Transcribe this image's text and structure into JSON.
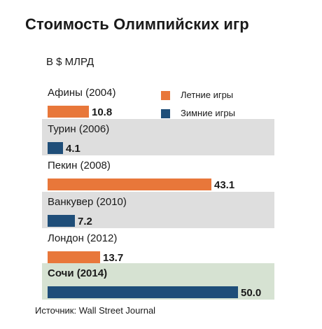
{
  "title": "Стоимость Олимпийских игр",
  "unit_label": "В $ МЛРД",
  "source": "Источник: Wall Street Journal",
  "colors": {
    "summer": "#e8773a",
    "winter": "#1f4e79",
    "row_alt": "#dedede",
    "row_highlight": "#d6e2d2"
  },
  "chart_data": {
    "type": "bar",
    "orientation": "horizontal",
    "title": "Стоимость Олимпийских игр",
    "xlabel": "",
    "ylabel": "",
    "unit": "В $ МЛРД",
    "xlim": [
      0,
      50
    ],
    "grid": false,
    "legend_position": "top-right",
    "legend": [
      {
        "name": "Летние игры",
        "color": "#e8773a"
      },
      {
        "name": "Зимние игры",
        "color": "#1f4e79"
      }
    ],
    "categories": [
      "Афины (2004)",
      "Турин (2006)",
      "Пекин (2008)",
      "Ванкувер (2010)",
      "Лондон (2012)",
      "Сочи (2014)"
    ],
    "values": [
      10.8,
      4.1,
      43.1,
      7.2,
      13.7,
      50.0
    ],
    "value_labels": [
      "10.8",
      "4.1",
      "43.1",
      "7.2",
      "13.7",
      "50.0"
    ],
    "series_type": [
      "summer",
      "winter",
      "summer",
      "winter",
      "summer",
      "winter"
    ]
  }
}
